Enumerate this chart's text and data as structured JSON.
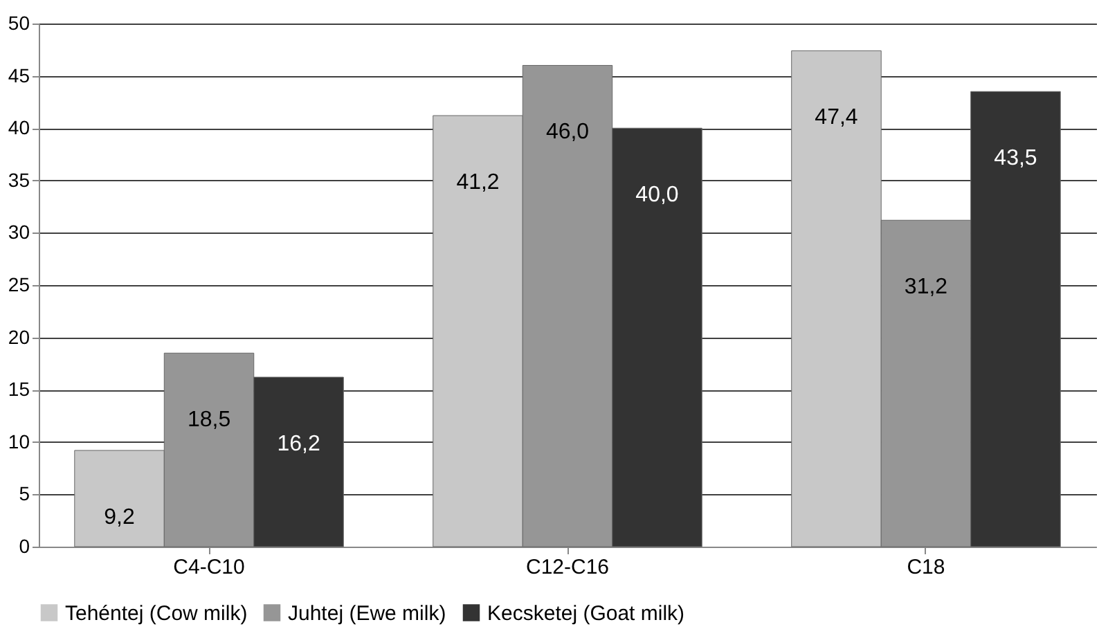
{
  "chart_data": {
    "type": "bar",
    "categories": [
      "C4-C10",
      "C12-C16",
      "C18"
    ],
    "series": [
      {
        "name": "Tehéntej (Cow milk)",
        "color": "#c8c8c8",
        "values": [
          9.2,
          41.2,
          47.4
        ],
        "value_labels": [
          "9,2",
          "41,2",
          "47,4"
        ]
      },
      {
        "name": "Juhtej (Ewe milk)",
        "color": "#969696",
        "values": [
          18.5,
          46.0,
          31.2
        ],
        "value_labels": [
          "18,5",
          "46,0",
          "31,2"
        ]
      },
      {
        "name": "Kecsketej (Goat milk)",
        "color": "#333333",
        "values": [
          16.2,
          40.0,
          43.5
        ],
        "value_labels": [
          "16,2",
          "40,0",
          "43,5"
        ]
      }
    ],
    "ylim": [
      0,
      50
    ],
    "yticks": [
      0,
      5,
      10,
      15,
      20,
      25,
      30,
      35,
      40,
      45,
      50
    ],
    "grid": "y",
    "legend": "bottom"
  }
}
